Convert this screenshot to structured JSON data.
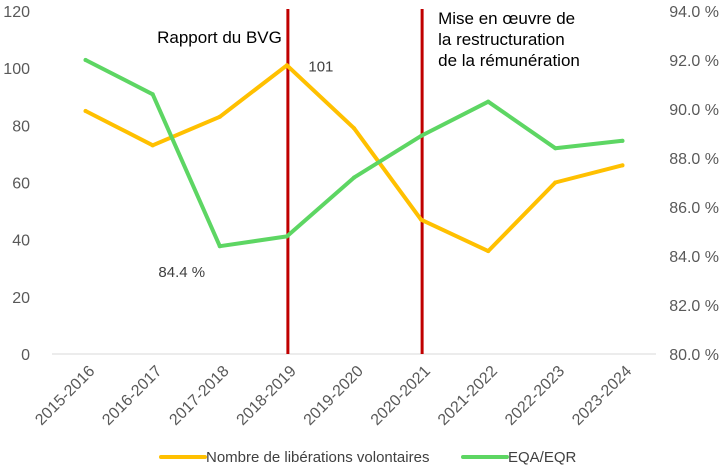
{
  "chart_data": {
    "type": "line",
    "title": "",
    "categories": [
      "2015-2016",
      "2016-2017",
      "2017-2018",
      "2018-2019",
      "2019-2020",
      "2020-2021",
      "2021-2022",
      "2022-2023",
      "2023-2024"
    ],
    "series": [
      {
        "name": "Nombre de libérations volontaires",
        "axis": "left",
        "color": "#FFC000",
        "values": [
          85,
          73,
          83,
          101,
          79,
          47,
          36,
          60,
          66
        ]
      },
      {
        "name": "EQA/EQR",
        "axis": "right",
        "color": "#5DD663",
        "values": [
          92.0,
          90.6,
          84.4,
          84.8,
          87.2,
          88.9,
          90.3,
          88.4,
          88.7
        ]
      }
    ],
    "y_left": {
      "min": 0,
      "max": 120,
      "step": 20,
      "ticks": [
        "0",
        "20",
        "40",
        "60",
        "80",
        "100",
        "120"
      ]
    },
    "y_right": {
      "min": 80.0,
      "max": 94.0,
      "step": 2.0,
      "ticks": [
        "80.0 %",
        "82.0 %",
        "84.0 %",
        "86.0 %",
        "88.0 %",
        "90.0 %",
        "92.0 %",
        "94.0 %"
      ]
    },
    "data_labels": [
      {
        "series": 0,
        "index": 3,
        "text": "101"
      },
      {
        "series": 1,
        "index": 2,
        "text": "84.4 %"
      }
    ],
    "vertical_markers": [
      {
        "after_index": 3,
        "color": "#C00000",
        "label_lines": [
          "Rapport du BVG"
        ]
      },
      {
        "after_index": 5,
        "color": "#C00000",
        "label_lines": [
          "Mise en œuvre de",
          "la restructuration",
          "de la rémunération"
        ]
      }
    ],
    "legend_position": "bottom"
  }
}
